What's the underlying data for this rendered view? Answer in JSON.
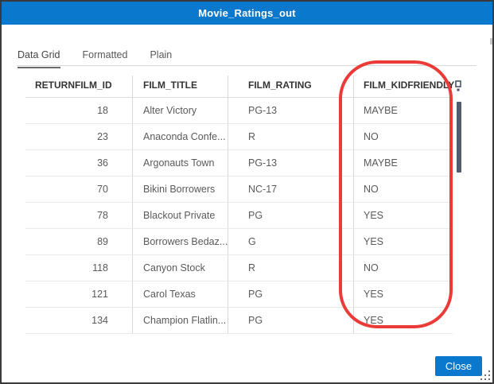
{
  "window": {
    "title": "Movie_Ratings_out"
  },
  "tabs": [
    {
      "label": "Data Grid",
      "active": true
    },
    {
      "label": "Formatted",
      "active": false
    },
    {
      "label": "Plain",
      "active": false
    }
  ],
  "table": {
    "columns": [
      "RETURNFILM_ID",
      "FILM_TITLE",
      "FILM_RATING",
      "FILM_KIDFRIENDLY"
    ],
    "rows": [
      [
        "18",
        "Alter Victory",
        "PG-13",
        "MAYBE"
      ],
      [
        "23",
        "Anaconda Confe...",
        "R",
        "NO"
      ],
      [
        "36",
        "Argonauts Town",
        "PG-13",
        "MAYBE"
      ],
      [
        "70",
        "Bikini Borrowers",
        "NC-17",
        "NO"
      ],
      [
        "78",
        "Blackout Private",
        "PG",
        "YES"
      ],
      [
        "89",
        "Borrowers Bedaz...",
        "G",
        "YES"
      ],
      [
        "118",
        "Canyon Stock",
        "R",
        "NO"
      ],
      [
        "121",
        "Carol Texas",
        "PG",
        "YES"
      ],
      [
        "134",
        "Champion Flatlin...",
        "PG",
        "YES"
      ]
    ]
  },
  "icons": {
    "grid_menu": "grid-column-menu-icon",
    "resize": "resize-grip-icon"
  },
  "annotation": {
    "shape": "rounded-rectangle",
    "color": "#ea3b38",
    "highlights_column": "FILM_KIDFRIENDLY"
  },
  "footer": {
    "close_label": "Close"
  },
  "colors": {
    "titlebar": "#0a78cc",
    "close_button": "#0a78cc",
    "scrollbar_thumb": "#515d6b",
    "annotation_red": "#ea3b38"
  }
}
